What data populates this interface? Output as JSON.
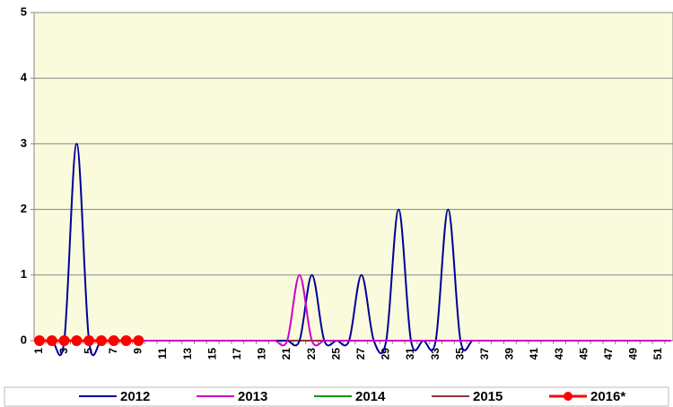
{
  "chart_data": {
    "type": "line",
    "smooth": true,
    "grid": true,
    "legend": "bottom",
    "background": "#fafadc",
    "categories": [
      1,
      null,
      3,
      null,
      5,
      null,
      7,
      null,
      9,
      null,
      11,
      null,
      13,
      null,
      15,
      null,
      17,
      null,
      19,
      null,
      21,
      null,
      23,
      null,
      25,
      null,
      27,
      null,
      29,
      null,
      31,
      null,
      33,
      null,
      35,
      null,
      37,
      null,
      39,
      null,
      41,
      null,
      43,
      null,
      45,
      null,
      47,
      null,
      49,
      null,
      51,
      null
    ],
    "ylim": [
      0,
      5
    ],
    "yticks": [
      0,
      1,
      2,
      3,
      4,
      5
    ],
    "series": [
      {
        "name": "2014",
        "color": "#009900",
        "values": [
          0,
          0,
          0,
          0,
          0,
          0,
          0,
          0,
          0,
          0,
          0,
          0,
          0,
          0,
          0,
          0,
          0,
          0,
          0,
          0,
          0,
          0,
          0,
          0,
          0,
          0,
          0,
          0,
          0,
          0,
          0,
          0,
          0,
          0,
          0,
          0,
          0,
          0,
          0,
          0,
          0,
          0,
          0,
          0,
          0,
          0,
          0,
          0,
          0,
          0,
          0,
          0
        ]
      },
      {
        "name": "2015",
        "color": "#993333",
        "values": [
          0,
          0,
          0,
          0,
          0,
          0,
          0,
          0,
          0,
          0,
          0,
          0,
          0,
          0,
          0,
          0,
          0,
          0,
          0,
          0,
          0,
          0,
          0,
          0,
          0,
          0,
          0,
          0,
          0,
          0,
          0,
          0,
          0,
          0,
          0,
          0,
          0,
          0,
          0,
          0,
          0,
          0,
          0,
          0,
          0,
          0,
          0,
          0,
          0,
          0,
          0,
          0
        ]
      },
      {
        "name": "2012",
        "color": "#000099",
        "values": [
          0,
          0,
          0,
          3,
          0,
          0,
          0,
          0,
          0,
          0,
          0,
          0,
          0,
          0,
          0,
          0,
          0,
          0,
          0,
          0,
          0,
          0,
          1,
          0,
          0,
          0,
          1,
          0,
          0,
          2,
          0,
          0,
          0,
          2,
          0,
          0,
          0,
          0,
          0,
          0,
          0,
          0,
          0,
          0,
          0,
          0,
          0,
          0,
          0,
          0,
          0,
          0
        ]
      },
      {
        "name": "2013",
        "color": "#cc00cc",
        "values": [
          0,
          0,
          0,
          0,
          0,
          0,
          0,
          0,
          0,
          0,
          0,
          0,
          0,
          0,
          0,
          0,
          0,
          0,
          0,
          0,
          0,
          1,
          0,
          0,
          0,
          0,
          0,
          0,
          0,
          0,
          0,
          0,
          0,
          0,
          0,
          0,
          0,
          0,
          0,
          0,
          0,
          0,
          0,
          0,
          0,
          0,
          0,
          0,
          0,
          0,
          0,
          0
        ]
      },
      {
        "name": "2016*",
        "color": "#ff0000",
        "markers": true,
        "values": [
          0,
          0,
          0,
          0,
          0,
          0,
          0,
          0,
          0,
          null,
          null,
          null,
          null,
          null,
          null,
          null,
          null,
          null,
          null,
          null,
          null,
          null,
          null,
          null,
          null,
          null,
          null,
          null,
          null,
          null,
          null,
          null,
          null,
          null,
          null,
          null,
          null,
          null,
          null,
          null,
          null,
          null,
          null,
          null,
          null,
          null,
          null,
          null,
          null,
          null,
          null,
          null
        ]
      }
    ],
    "legend_order": [
      2,
      3,
      0,
      1,
      4
    ]
  }
}
